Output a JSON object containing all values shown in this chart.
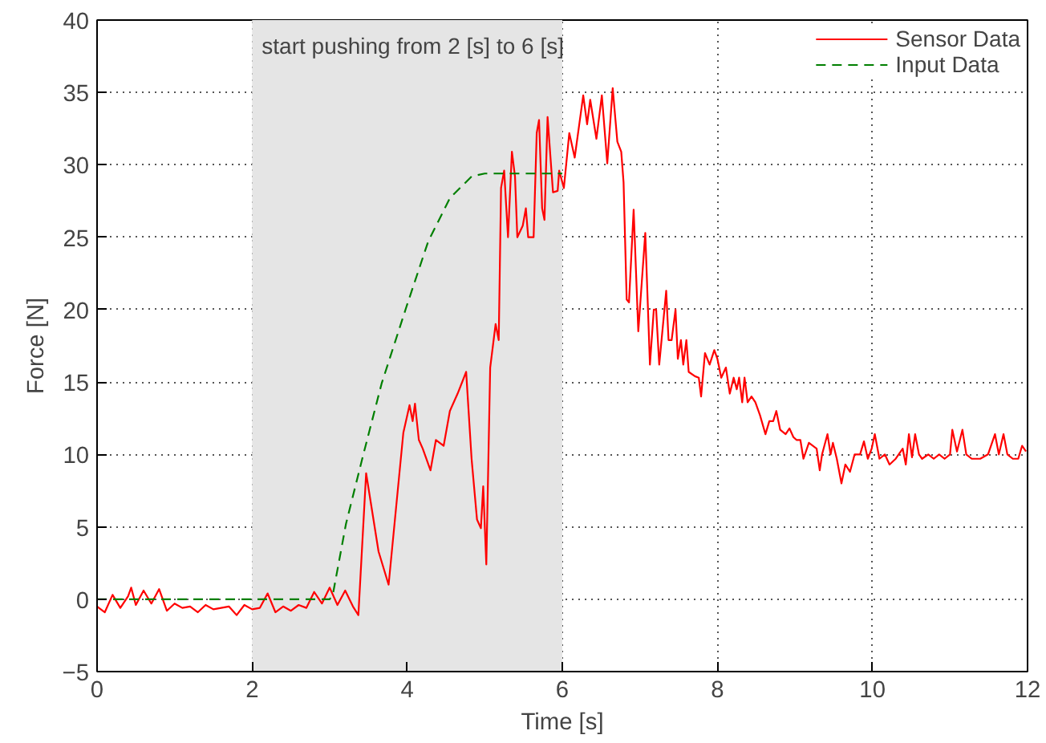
{
  "chart_data": {
    "type": "line",
    "xlabel": "Time [s]",
    "ylabel": "Force [N]",
    "xlim": [
      0,
      12
    ],
    "ylim": [
      -5,
      40
    ],
    "xticks": [
      0,
      2,
      4,
      6,
      8,
      10,
      12
    ],
    "yticks": [
      {
        "value": -5,
        "label": "−5"
      },
      0,
      5,
      10,
      15,
      20,
      25,
      30,
      35,
      40
    ],
    "grid": true,
    "legend": "top right",
    "bands": [
      {
        "axis": "x",
        "from": 2,
        "to": 6,
        "label": "start pushing from 2 [s] to 6 [s]",
        "color": "#e5e5e5"
      }
    ],
    "series": [
      {
        "name": "Sensor Data",
        "color": "#ff0000",
        "line_style": "solid",
        "x": [
          0,
          0.1,
          0.2,
          0.3,
          0.4,
          0.44,
          0.5,
          0.6,
          0.7,
          0.8,
          0.9,
          1.0,
          1.1,
          1.2,
          1.3,
          1.4,
          1.5,
          1.6,
          1.7,
          1.8,
          1.9,
          2.0,
          2.1,
          2.2,
          2.3,
          2.4,
          2.5,
          2.6,
          2.7,
          2.8,
          2.9,
          3.0,
          3.1,
          3.2,
          3.3,
          3.37,
          3.47,
          3.63,
          3.76,
          3.95,
          4.03,
          4.07,
          4.1,
          4.15,
          4.2,
          4.3,
          4.37,
          4.47,
          4.55,
          4.65,
          4.76,
          4.83,
          4.9,
          4.95,
          4.98,
          5.02,
          5.07,
          5.14,
          5.18,
          5.21,
          5.25,
          5.3,
          5.35,
          5.39,
          5.42,
          5.49,
          5.53,
          5.56,
          5.63,
          5.67,
          5.7,
          5.74,
          5.77,
          5.81,
          5.88,
          5.94,
          5.96,
          6.02,
          6.09,
          6.16,
          6.27,
          6.32,
          6.36,
          6.44,
          6.51,
          6.58,
          6.65,
          6.71,
          6.76,
          6.79,
          6.83,
          6.86,
          6.92,
          6.98,
          7.07,
          7.13,
          7.18,
          7.21,
          7.25,
          7.34,
          7.37,
          7.41,
          7.46,
          7.49,
          7.53,
          7.56,
          7.6,
          7.63,
          7.71,
          7.76,
          7.79,
          7.84,
          7.9,
          7.96,
          8.0,
          8.05,
          8.11,
          8.16,
          8.21,
          8.25,
          8.28,
          8.32,
          8.35,
          8.39,
          8.44,
          8.49,
          8.55,
          8.62,
          8.67,
          8.72,
          8.76,
          8.81,
          8.88,
          8.93,
          8.98,
          9.02,
          9.07,
          9.11,
          9.18,
          9.28,
          9.32,
          9.35,
          9.42,
          9.46,
          9.49,
          9.54,
          9.6,
          9.65,
          9.71,
          9.77,
          9.84,
          9.89,
          9.94,
          9.99,
          10.03,
          10.09,
          10.16,
          10.22,
          10.3,
          10.39,
          10.43,
          10.47,
          10.51,
          10.55,
          10.6,
          10.64,
          10.72,
          10.79,
          10.86,
          10.93,
          11.0,
          11.03,
          11.09,
          11.16,
          11.21,
          11.28,
          11.39,
          11.49,
          11.58,
          11.63,
          11.69,
          11.74,
          11.81,
          11.88,
          11.93,
          11.98
        ],
        "values": [
          -0.5,
          -0.9,
          0.3,
          -0.6,
          0.2,
          0.8,
          -0.4,
          0.6,
          -0.3,
          0.7,
          -0.8,
          -0.3,
          -0.6,
          -0.5,
          -0.9,
          -0.4,
          -0.7,
          -0.6,
          -0.5,
          -1.1,
          -0.4,
          -0.7,
          -0.6,
          0.4,
          -0.9,
          -0.5,
          -0.8,
          -0.4,
          -0.6,
          0.5,
          -0.3,
          0.8,
          -0.4,
          0.6,
          -0.5,
          -1.1,
          8.7,
          3.3,
          1.0,
          11.5,
          13.4,
          12.3,
          13.5,
          11,
          10.4,
          8.9,
          11,
          10.6,
          13,
          14.2,
          15.7,
          9.7,
          5.5,
          4.9,
          7.8,
          2.4,
          16,
          19,
          17.9,
          28.4,
          29.6,
          25,
          30.9,
          29.2,
          25,
          25.8,
          27,
          25,
          25,
          32.2,
          33.1,
          27,
          26.2,
          33.3,
          28.1,
          28.2,
          29.6,
          28.4,
          32.2,
          30.5,
          34.8,
          32.8,
          34.5,
          31.8,
          34.8,
          30.1,
          35.3,
          31.6,
          30.9,
          28.8,
          20.7,
          20.5,
          26.9,
          18.5,
          25.3,
          16.2,
          20,
          20,
          16.2,
          21.3,
          17.9,
          17.9,
          20,
          16.6,
          17.9,
          16.2,
          17.9,
          15.7,
          15.4,
          15.3,
          14,
          17,
          16.2,
          17.2,
          16.6,
          15.3,
          16,
          14.2,
          15.3,
          14.5,
          15.3,
          13.6,
          15.3,
          13.6,
          14,
          13.6,
          12.7,
          11.4,
          12.3,
          12.3,
          13,
          11.7,
          11.4,
          11.8,
          11.2,
          11,
          11,
          9.7,
          10.8,
          10.4,
          8.9,
          10,
          11.4,
          10,
          10.8,
          9.7,
          8.0,
          9.3,
          8.8,
          10,
          10,
          10.9,
          9.7,
          10.4,
          11.4,
          9.7,
          10,
          9.3,
          9.7,
          10.4,
          9.3,
          11.4,
          9.8,
          11.4,
          10,
          9.7,
          10,
          9.7,
          10,
          9.7,
          10,
          11.7,
          10.2,
          11.7,
          10,
          9.7,
          9.7,
          10,
          11.4,
          10,
          11.4,
          10,
          9.7,
          9.7,
          10.6,
          10.2
        ]
      },
      {
        "name": "Input Data",
        "color": "#007f00",
        "line_style": "dashed",
        "x": [
          0,
          3.0,
          3.04,
          3.21,
          3.42,
          3.67,
          3.99,
          4.27,
          4.55,
          4.83,
          5.0,
          6.0
        ],
        "values": [
          0,
          0,
          0.3,
          5.2,
          9.7,
          14.9,
          20.2,
          24.7,
          27.7,
          29.2,
          29.4,
          29.4
        ]
      }
    ]
  }
}
